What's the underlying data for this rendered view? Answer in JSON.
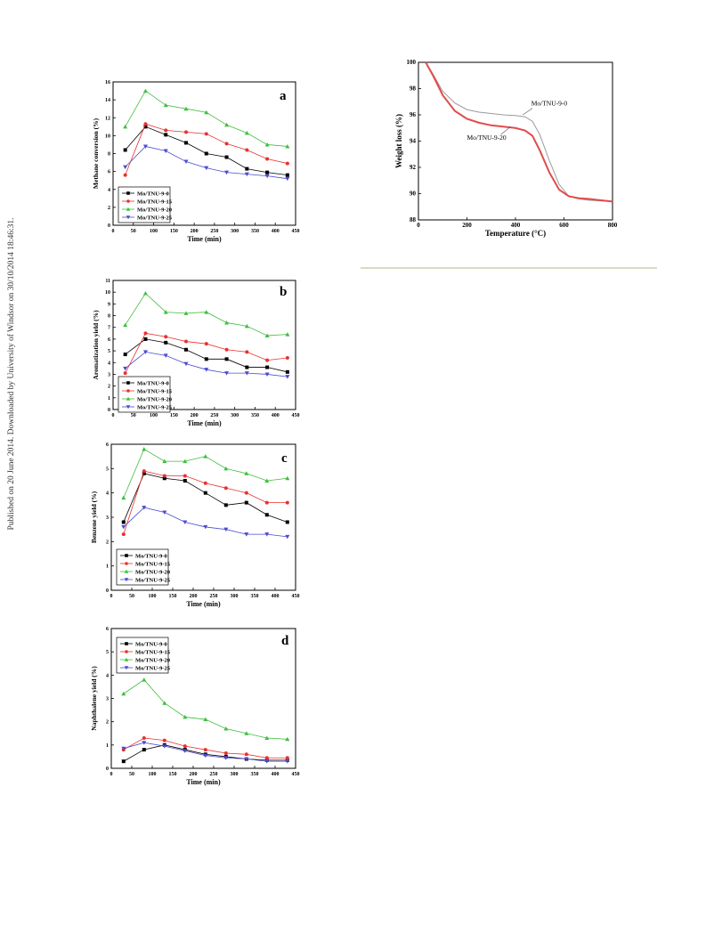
{
  "page": {
    "side_note": "Published on 20 June 2014. Downloaded by University of Windsor on 30/10/2014 18:46:31."
  },
  "chart_data": [
    {
      "type": "line",
      "panel_label": "a",
      "xlabel": "Time (min)",
      "ylabel": "Methane conversion (%)",
      "xlim": [
        0,
        450
      ],
      "ylim": [
        0,
        16
      ],
      "xticks": [
        0,
        50,
        100,
        150,
        200,
        250,
        300,
        350,
        400,
        450
      ],
      "yticks": [
        0,
        2,
        4,
        6,
        8,
        10,
        12,
        14,
        16
      ],
      "legend_position": "bottom-left",
      "x": [
        30,
        80,
        130,
        180,
        230,
        280,
        330,
        380,
        430
      ],
      "series": [
        {
          "name": "Mo/TNU-9-0",
          "color": "#000000",
          "marker": "square",
          "values": [
            8.4,
            11.0,
            10.1,
            9.2,
            8.0,
            7.6,
            6.3,
            5.9,
            5.6
          ]
        },
        {
          "name": "Mo/TNU-9-15",
          "color": "#e8312f",
          "marker": "circle",
          "values": [
            5.6,
            11.3,
            10.6,
            10.4,
            10.2,
            9.1,
            8.4,
            7.4,
            6.9
          ]
        },
        {
          "name": "Mo/TNU-9-20",
          "color": "#3fbf3f",
          "marker": "triangle-up",
          "values": [
            11.0,
            15.0,
            13.4,
            13.0,
            12.6,
            11.2,
            10.3,
            9.0,
            8.8
          ]
        },
        {
          "name": "Mo/TNU-9-25",
          "color": "#4b4bd1",
          "marker": "triangle-down",
          "values": [
            6.5,
            8.8,
            8.3,
            7.1,
            6.4,
            5.9,
            5.7,
            5.5,
            5.2
          ]
        }
      ]
    },
    {
      "type": "line",
      "panel_label": "b",
      "xlabel": "Time (min)",
      "ylabel": "Aromatization yield (%)",
      "xlim": [
        0,
        450
      ],
      "ylim": [
        0,
        11
      ],
      "xticks": [
        0,
        50,
        100,
        150,
        200,
        250,
        300,
        350,
        400,
        450
      ],
      "yticks": [
        0,
        1,
        2,
        3,
        4,
        5,
        6,
        7,
        8,
        9,
        10,
        11
      ],
      "legend_position": "bottom-left",
      "x": [
        30,
        80,
        130,
        180,
        230,
        280,
        330,
        380,
        430
      ],
      "series": [
        {
          "name": "Mo/TNU-9-0",
          "color": "#000000",
          "marker": "square",
          "values": [
            4.7,
            6.0,
            5.7,
            5.1,
            4.3,
            4.3,
            3.6,
            3.6,
            3.2
          ]
        },
        {
          "name": "Mo/TNU-9-15",
          "color": "#e8312f",
          "marker": "circle",
          "values": [
            3.1,
            6.5,
            6.2,
            5.8,
            5.6,
            5.1,
            4.9,
            4.2,
            4.4
          ]
        },
        {
          "name": "Mo/TNU-9-20",
          "color": "#3fbf3f",
          "marker": "triangle-up",
          "values": [
            7.2,
            9.9,
            8.3,
            8.2,
            8.3,
            7.4,
            7.1,
            6.3,
            6.4
          ]
        },
        {
          "name": "Mo/TNU-9-25",
          "color": "#4b4bd1",
          "marker": "triangle-down",
          "values": [
            3.5,
            4.9,
            4.6,
            3.9,
            3.4,
            3.1,
            3.1,
            3.0,
            2.8
          ]
        }
      ]
    },
    {
      "type": "line",
      "panel_label": "c",
      "xlabel": "Time (min)",
      "ylabel": "Benzene yield (%)",
      "xlim": [
        0,
        450
      ],
      "ylim": [
        0,
        6
      ],
      "xticks": [
        0,
        50,
        100,
        150,
        200,
        250,
        300,
        350,
        400,
        450
      ],
      "yticks": [
        0,
        1,
        2,
        3,
        4,
        5,
        6
      ],
      "legend_position": "bottom-left",
      "x": [
        30,
        80,
        130,
        180,
        230,
        280,
        330,
        380,
        430
      ],
      "series": [
        {
          "name": "Mo/TNU-9-0",
          "color": "#000000",
          "marker": "square",
          "values": [
            2.8,
            4.8,
            4.6,
            4.5,
            4.0,
            3.5,
            3.6,
            3.1,
            2.8
          ]
        },
        {
          "name": "Mo/TNU-9-15",
          "color": "#e8312f",
          "marker": "circle",
          "values": [
            2.3,
            4.9,
            4.7,
            4.7,
            4.4,
            4.2,
            4.0,
            3.6,
            3.6
          ]
        },
        {
          "name": "Mo/TNU-9-20",
          "color": "#3fbf3f",
          "marker": "triangle-up",
          "values": [
            3.8,
            5.8,
            5.3,
            5.3,
            5.5,
            5.0,
            4.8,
            4.5,
            4.6
          ]
        },
        {
          "name": "Mo/TNU-9-25",
          "color": "#4b4bd1",
          "marker": "triangle-down",
          "values": [
            2.6,
            3.4,
            3.2,
            2.8,
            2.6,
            2.5,
            2.3,
            2.3,
            2.2
          ]
        }
      ]
    },
    {
      "type": "line",
      "panel_label": "d",
      "xlabel": "Time (min)",
      "ylabel": "Naphthalene yield (%)",
      "xlim": [
        0,
        450
      ],
      "ylim": [
        0,
        6
      ],
      "xticks": [
        0,
        50,
        100,
        150,
        200,
        250,
        300,
        350,
        400,
        450
      ],
      "yticks": [
        0,
        1,
        2,
        3,
        4,
        5,
        6
      ],
      "legend_position": "top-left",
      "x": [
        30,
        80,
        130,
        180,
        230,
        280,
        330,
        380,
        430
      ],
      "series": [
        {
          "name": "Mo/TNU-9-0",
          "color": "#000000",
          "marker": "square",
          "values": [
            0.3,
            0.8,
            1.0,
            0.8,
            0.6,
            0.5,
            0.4,
            0.35,
            0.35
          ]
        },
        {
          "name": "Mo/TNU-9-15",
          "color": "#e8312f",
          "marker": "circle",
          "values": [
            0.8,
            1.3,
            1.2,
            0.95,
            0.8,
            0.65,
            0.6,
            0.45,
            0.45
          ]
        },
        {
          "name": "Mo/TNU-9-20",
          "color": "#3fbf3f",
          "marker": "triangle-up",
          "values": [
            3.2,
            3.8,
            2.8,
            2.2,
            2.1,
            1.7,
            1.5,
            1.3,
            1.25
          ]
        },
        {
          "name": "Mo/TNU-9-25",
          "color": "#4b4bd1",
          "marker": "triangle-down",
          "values": [
            0.85,
            1.1,
            0.95,
            0.75,
            0.55,
            0.45,
            0.4,
            0.3,
            0.3
          ]
        }
      ]
    },
    {
      "type": "line",
      "panel_label": "",
      "xlabel": "Temperature (°C)",
      "ylabel": "Weight loss (%)",
      "xlim": [
        0,
        800
      ],
      "ylim": [
        88,
        100
      ],
      "xticks": [
        0,
        200,
        400,
        600,
        800
      ],
      "yticks": [
        88,
        90,
        92,
        94,
        96,
        98,
        100
      ],
      "markers": false,
      "annotations": [
        "Mo/TNU-9-0",
        "Mo/TNU-9-20"
      ],
      "series": [
        {
          "name": "Mo/TNU-9-0",
          "color": "#9a9a9a",
          "x": [
            30,
            60,
            100,
            150,
            200,
            250,
            300,
            350,
            400,
            440,
            470,
            500,
            540,
            580,
            620,
            660,
            700,
            750,
            800
          ],
          "values": [
            100,
            99.1,
            97.8,
            96.9,
            96.4,
            96.2,
            96.1,
            96.0,
            95.95,
            95.85,
            95.5,
            94.5,
            92.5,
            90.7,
            89.8,
            89.6,
            89.5,
            89.45,
            89.4
          ]
        },
        {
          "name": "Mo/TNU-9-20",
          "color": "#e24b4b",
          "x": [
            30,
            60,
            100,
            150,
            200,
            250,
            300,
            350,
            400,
            440,
            470,
            500,
            540,
            580,
            620,
            660,
            700,
            750,
            800
          ],
          "values": [
            100,
            99.0,
            97.5,
            96.3,
            95.7,
            95.4,
            95.2,
            95.1,
            95.0,
            94.8,
            94.4,
            93.3,
            91.6,
            90.3,
            89.8,
            89.65,
            89.6,
            89.5,
            89.4
          ]
        }
      ]
    }
  ]
}
